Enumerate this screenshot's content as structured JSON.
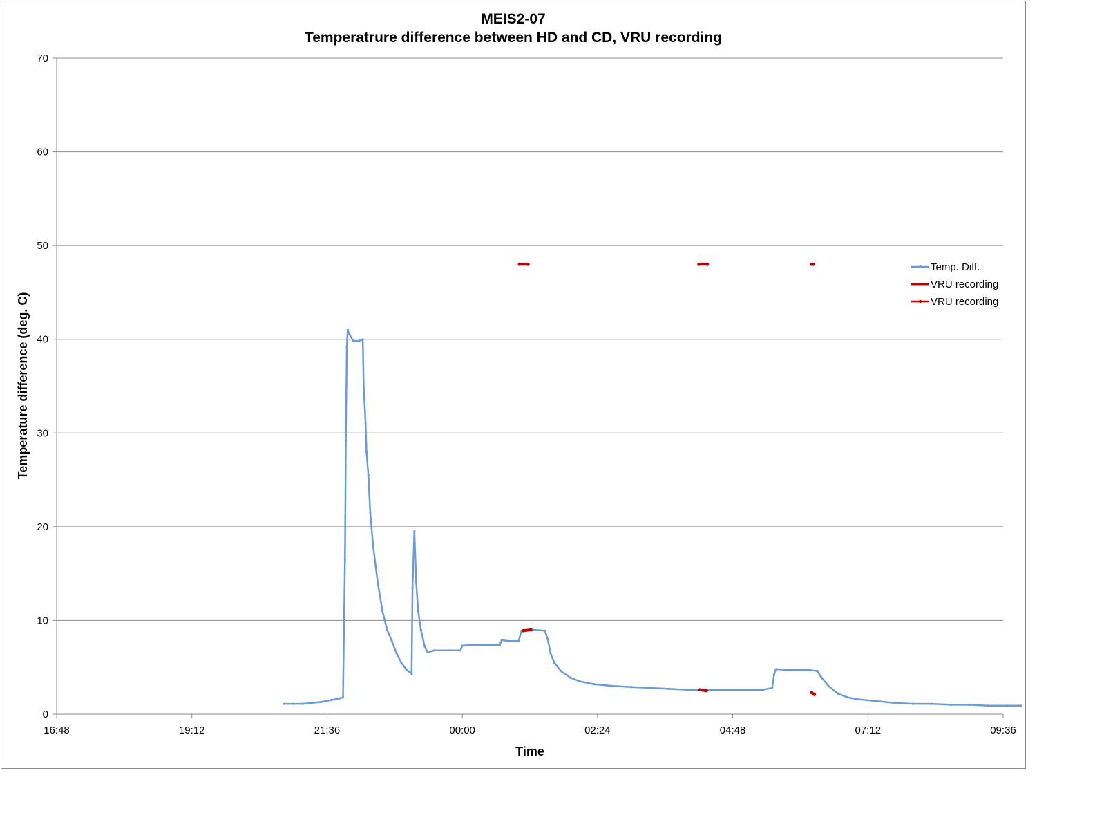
{
  "chart_data": {
    "type": "line",
    "title_line1": "MEIS2-07",
    "title_line2": "Temperatrure difference between HD and CD, VRU recording",
    "xlabel": "Time",
    "ylabel": "Temperature difference (deg. C)",
    "ylim": [
      0,
      70
    ],
    "yticks": [
      0,
      10,
      20,
      30,
      40,
      50,
      60,
      70
    ],
    "xlim": [
      "16:48",
      "09:36"
    ],
    "xtick_labels": [
      "16:48",
      "19:12",
      "21:36",
      "00:00",
      "02:24",
      "04:48",
      "07:12",
      "09:36"
    ],
    "grid": "horizontal",
    "legend_position": "right",
    "colors": {
      "temp": "#6a9bd8",
      "vru": "#c00000",
      "grid": "#8c8c8c"
    },
    "series": [
      {
        "name": "Temp. Diff.",
        "color": "#6a9bd8",
        "points": [
          [
            "20:50",
            1.1
          ],
          [
            "21:00",
            1.1
          ],
          [
            "21:10",
            1.1
          ],
          [
            "21:20",
            1.2
          ],
          [
            "21:30",
            1.3
          ],
          [
            "21:40",
            1.5
          ],
          [
            "21:50",
            1.7
          ],
          [
            "21:53",
            1.8
          ],
          [
            "21:55",
            16.5
          ],
          [
            "21:56",
            29.2
          ],
          [
            "21:57",
            39.2
          ],
          [
            "21:58",
            41.0
          ],
          [
            "22:00",
            40.5
          ],
          [
            "22:04",
            39.8
          ],
          [
            "22:10",
            39.8
          ],
          [
            "22:14",
            40.0
          ],
          [
            "22:15",
            35.0
          ],
          [
            "22:17",
            31.0
          ],
          [
            "22:18",
            28.0
          ],
          [
            "22:20",
            25.5
          ],
          [
            "22:22",
            21.5
          ],
          [
            "22:25",
            18.0
          ],
          [
            "22:30",
            14.0
          ],
          [
            "22:35",
            11.0
          ],
          [
            "22:40",
            9.0
          ],
          [
            "22:45",
            7.8
          ],
          [
            "22:50",
            6.5
          ],
          [
            "22:55",
            5.5
          ],
          [
            "23:00",
            4.8
          ],
          [
            "23:06",
            4.3
          ],
          [
            "23:07",
            13.5
          ],
          [
            "23:09",
            19.5
          ],
          [
            "23:11",
            14.0
          ],
          [
            "23:13",
            11.0
          ],
          [
            "23:16",
            9.0
          ],
          [
            "23:20",
            7.2
          ],
          [
            "23:23",
            6.6
          ],
          [
            "23:30",
            6.8
          ],
          [
            "23:45",
            6.8
          ],
          [
            "23:58",
            6.8
          ],
          [
            "24:00",
            7.3
          ],
          [
            "24:10",
            7.4
          ],
          [
            "24:25",
            7.4
          ],
          [
            "24:40",
            7.4
          ],
          [
            "24:42",
            7.9
          ],
          [
            "24:50",
            7.8
          ],
          [
            "25:00",
            7.8
          ],
          [
            "25:03",
            8.9
          ],
          [
            "25:15",
            9.0
          ],
          [
            "25:28",
            8.9
          ],
          [
            "25:31",
            8.0
          ],
          [
            "25:34",
            6.5
          ],
          [
            "25:38",
            5.5
          ],
          [
            "25:45",
            4.6
          ],
          [
            "25:55",
            3.9
          ],
          [
            "26:05",
            3.5
          ],
          [
            "26:20",
            3.2
          ],
          [
            "26:40",
            3.0
          ],
          [
            "27:00",
            2.9
          ],
          [
            "27:20",
            2.8
          ],
          [
            "27:40",
            2.7
          ],
          [
            "28:00",
            2.6
          ],
          [
            "28:20",
            2.6
          ],
          [
            "28:40",
            2.6
          ],
          [
            "29:00",
            2.6
          ],
          [
            "29:20",
            2.6
          ],
          [
            "29:30",
            2.8
          ],
          [
            "29:32",
            4.2
          ],
          [
            "29:34",
            4.8
          ],
          [
            "29:50",
            4.7
          ],
          [
            "30:10",
            4.7
          ],
          [
            "30:18",
            4.6
          ],
          [
            "30:22",
            4.0
          ],
          [
            "30:30",
            3.0
          ],
          [
            "30:40",
            2.2
          ],
          [
            "30:50",
            1.8
          ],
          [
            "31:00",
            1.6
          ],
          [
            "31:20",
            1.4
          ],
          [
            "31:40",
            1.2
          ],
          [
            "32:00",
            1.1
          ],
          [
            "32:20",
            1.1
          ],
          [
            "32:40",
            1.0
          ],
          [
            "33:00",
            1.0
          ],
          [
            "33:20",
            0.9
          ],
          [
            "33:40",
            0.9
          ],
          [
            "33:55",
            0.9
          ]
        ]
      },
      {
        "name": "VRU recording",
        "color": "#c00000",
        "segments": [
          [
            [
              "25:01",
              48.0
            ],
            [
              "25:10",
              48.0
            ]
          ],
          [
            [
              "28:12",
              48.0
            ],
            [
              "28:21",
              48.0
            ]
          ],
          [
            [
              "30:12",
              48.0
            ],
            [
              "30:14",
              48.0
            ]
          ]
        ]
      },
      {
        "name": "VRU recording",
        "color": "#c00000",
        "segments": [
          [
            [
              "25:05",
              8.9
            ],
            [
              "25:13",
              9.0
            ]
          ],
          [
            [
              "28:13",
              2.6
            ],
            [
              "28:20",
              2.5
            ]
          ],
          [
            [
              "30:12",
              2.3
            ],
            [
              "30:15",
              2.1
            ]
          ]
        ]
      }
    ]
  }
}
